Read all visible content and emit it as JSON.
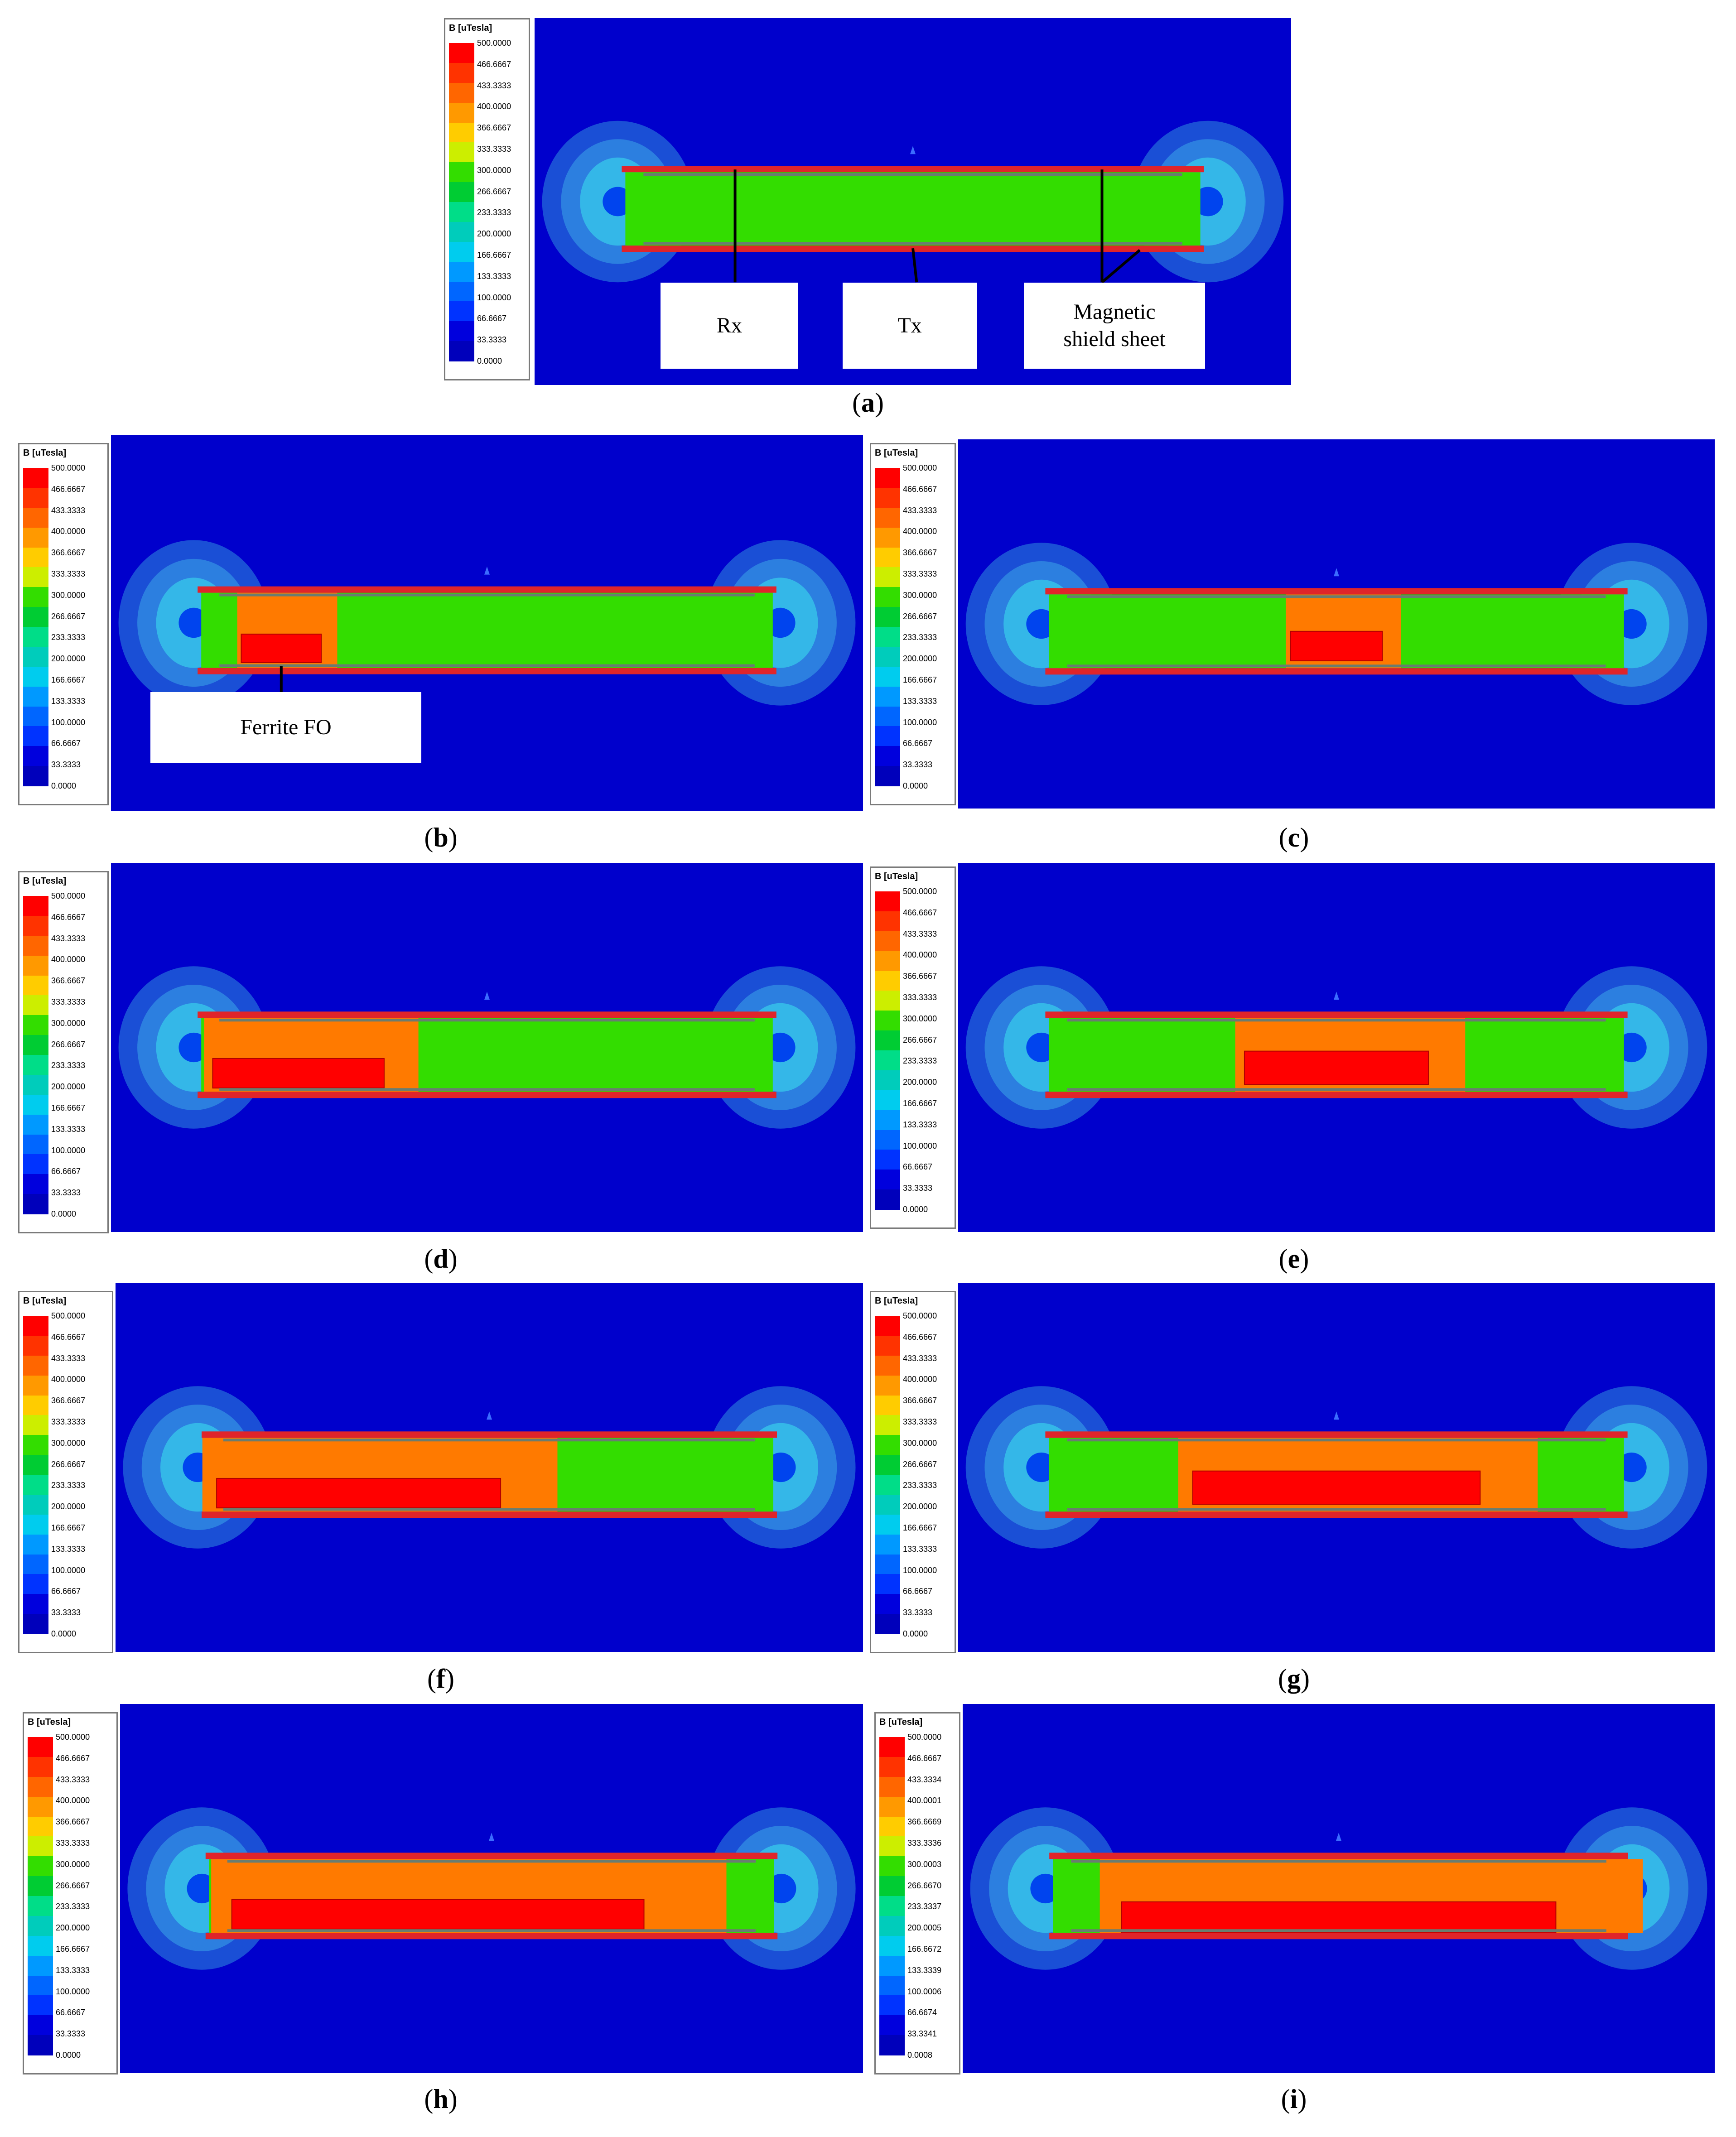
{
  "legend": {
    "title": "B [uTesla]",
    "ticks_standard": [
      "500.0000",
      "466.6667",
      "433.3333",
      "400.0000",
      "366.6667",
      "333.3333",
      "300.0000",
      "266.6667",
      "233.3333",
      "200.0000",
      "166.6667",
      "133.3333",
      "100.0000",
      "66.6667",
      "33.3333",
      "0.0000"
    ],
    "ticks_i": [
      "500.0000",
      "466.6667",
      "433.3334",
      "400.0001",
      "366.6669",
      "333.3336",
      "300.0003",
      "266.6670",
      "233.3337",
      "200.0005",
      "166.6672",
      "133.3339",
      "100.0006",
      "66.6674",
      "33.3341",
      "0.0008"
    ],
    "colors": [
      "#ff0000",
      "#ff3300",
      "#ff6600",
      "#ff9900",
      "#ffcc00",
      "#ccee00",
      "#33dd00",
      "#00cc33",
      "#00dd88",
      "#00ccbb",
      "#00ccee",
      "#0099ff",
      "#0066ff",
      "#0033ff",
      "#0000dd",
      "#0000bb"
    ]
  },
  "labels": {
    "rx": "Rx",
    "tx": "Tx",
    "shield_line1": "Magnetic",
    "shield_line2": "shield sheet",
    "ferrite": "Ferrite FO"
  },
  "panels": [
    {
      "id": "a",
      "caption": "a"
    },
    {
      "id": "b",
      "caption": "b"
    },
    {
      "id": "c",
      "caption": "c"
    },
    {
      "id": "d",
      "caption": "d"
    },
    {
      "id": "e",
      "caption": "e"
    },
    {
      "id": "f",
      "caption": "f"
    },
    {
      "id": "g",
      "caption": "g"
    },
    {
      "id": "h",
      "caption": "h"
    },
    {
      "id": "i",
      "caption": "i"
    }
  ],
  "colors": {
    "background_field": "#0000cc",
    "field_green": "#33dd00",
    "ferrite_red": "#ff0000",
    "shield_red": "#e0242a",
    "halo_outer": "#1a4fd6",
    "halo_mid": "#2c7fe0",
    "halo_inner": "#34b7e8"
  }
}
